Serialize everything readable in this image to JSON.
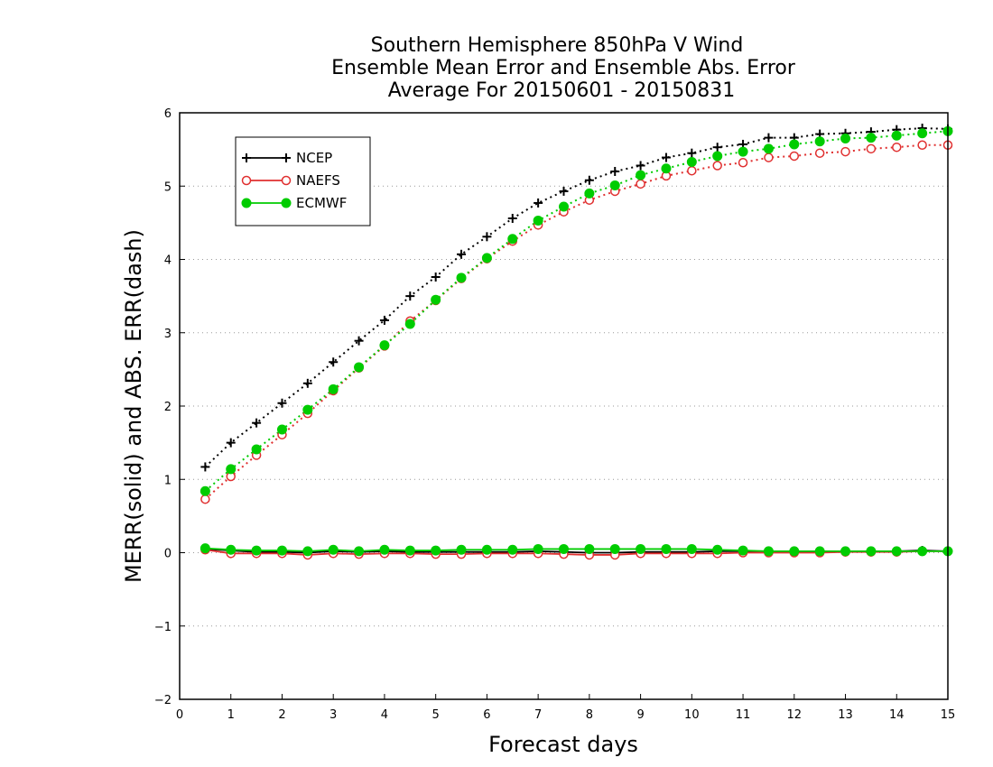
{
  "chart_data": {
    "type": "line",
    "title": [
      "Southern Hemisphere 850hPa V Wind",
      "Ensemble Mean Error and Ensemble Abs. Error",
      "Average For 20150601 - 20150831"
    ],
    "xlabel": "Forecast days",
    "ylabel": "MERR(solid) and ABS. ERR(dash)",
    "xlim": [
      0,
      15
    ],
    "ylim": [
      -2,
      6
    ],
    "xticks": [
      0,
      1,
      2,
      3,
      4,
      5,
      6,
      7,
      8,
      9,
      10,
      11,
      12,
      13,
      14,
      15
    ],
    "yticks": [
      -2,
      -1,
      0,
      1,
      2,
      3,
      4,
      5,
      6
    ],
    "ytick_labels": [
      "−2",
      "−1",
      "0",
      "1",
      "2",
      "3",
      "4",
      "5",
      "6"
    ],
    "grid": "horizontal dotted",
    "legend_position": "top-left",
    "x": [
      0.5,
      1,
      1.5,
      2,
      2.5,
      3,
      3.5,
      4,
      4.5,
      5,
      5.5,
      6,
      6.5,
      7,
      7.5,
      8,
      8.5,
      9,
      9.5,
      10,
      10.5,
      11,
      11.5,
      12,
      12.5,
      13,
      13.5,
      14,
      14.5,
      15
    ],
    "series": [
      {
        "name": "NCEP",
        "color": "#000000",
        "marker": "plus",
        "abs_err": [
          1.17,
          1.5,
          1.77,
          2.04,
          2.31,
          2.6,
          2.89,
          3.17,
          3.5,
          3.76,
          4.07,
          4.31,
          4.56,
          4.77,
          4.93,
          5.08,
          5.2,
          5.28,
          5.39,
          5.45,
          5.53,
          5.57,
          5.66,
          5.66,
          5.71,
          5.72,
          5.74,
          5.77,
          5.79,
          5.78
        ],
        "mean_err": [
          0.05,
          0.03,
          0.01,
          0.01,
          0.0,
          0.02,
          0.01,
          0.02,
          0.01,
          0.01,
          0.01,
          0.01,
          0.01,
          0.02,
          0.01,
          0.0,
          0.0,
          0.01,
          0.01,
          0.01,
          0.02,
          0.02,
          0.02,
          0.02,
          0.01,
          0.02,
          0.02,
          0.02,
          0.03,
          0.02
        ]
      },
      {
        "name": "NAEFS",
        "color": "#e03030",
        "marker": "open-circle",
        "abs_err": [
          0.73,
          1.04,
          1.33,
          1.61,
          1.9,
          2.21,
          2.52,
          2.82,
          3.16,
          3.44,
          3.74,
          4.01,
          4.25,
          4.47,
          4.65,
          4.81,
          4.93,
          5.03,
          5.14,
          5.21,
          5.28,
          5.32,
          5.39,
          5.41,
          5.45,
          5.47,
          5.51,
          5.53,
          5.56,
          5.56
        ],
        "mean_err": [
          0.04,
          -0.01,
          -0.01,
          -0.01,
          -0.03,
          -0.01,
          -0.02,
          -0.01,
          -0.01,
          -0.02,
          -0.02,
          -0.01,
          -0.01,
          -0.01,
          -0.02,
          -0.03,
          -0.03,
          -0.01,
          -0.01,
          -0.01,
          -0.01,
          0.0,
          0.0,
          0.0,
          0.0,
          0.01,
          0.01,
          0.01,
          0.02,
          0.02
        ]
      },
      {
        "name": "ECMWF",
        "color": "#00cc00",
        "marker": "filled-circle",
        "abs_err": [
          0.84,
          1.14,
          1.41,
          1.68,
          1.95,
          2.23,
          2.53,
          2.83,
          3.12,
          3.45,
          3.75,
          4.02,
          4.28,
          4.53,
          4.72,
          4.9,
          5.01,
          5.15,
          5.24,
          5.33,
          5.41,
          5.47,
          5.51,
          5.57,
          5.61,
          5.65,
          5.66,
          5.69,
          5.72,
          5.75
        ],
        "mean_err": [
          0.06,
          0.04,
          0.03,
          0.03,
          0.02,
          0.04,
          0.02,
          0.04,
          0.03,
          0.03,
          0.04,
          0.04,
          0.04,
          0.05,
          0.05,
          0.05,
          0.05,
          0.05,
          0.05,
          0.05,
          0.04,
          0.03,
          0.02,
          0.02,
          0.02,
          0.02,
          0.02,
          0.02,
          0.02,
          0.02
        ]
      }
    ]
  }
}
